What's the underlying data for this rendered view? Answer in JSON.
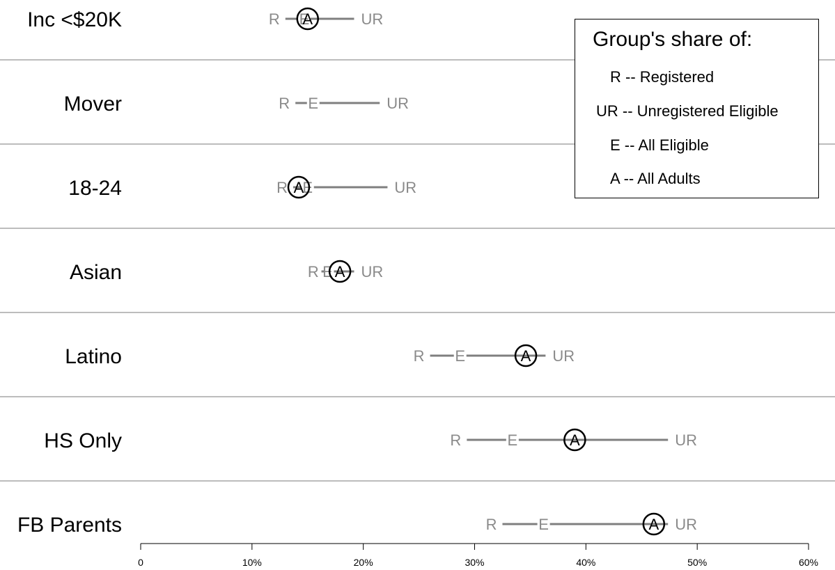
{
  "chart_data": {
    "type": "dot-range",
    "categories": [
      "Inc <$20K",
      "Mover",
      "18-24",
      "Asian",
      "Latino",
      "HS Only",
      "FB Parents"
    ],
    "series": [
      {
        "name": "R -- Registered",
        "values": [
          12.5,
          13.4,
          13.2,
          16.0,
          25.5,
          28.8,
          32.0
        ]
      },
      {
        "name": "UR -- Unregistered Eligible",
        "values": [
          19.8,
          22.1,
          22.8,
          19.8,
          37.0,
          48.0,
          48.0
        ]
      },
      {
        "name": "E -- All Eligible",
        "values": [
          14.7,
          15.5,
          15.0,
          16.8,
          28.7,
          33.4,
          36.2
        ]
      },
      {
        "name": "A -- All Adults",
        "values": [
          15.0,
          null,
          14.2,
          17.9,
          34.6,
          39.0,
          46.1
        ]
      }
    ],
    "marks": {
      "registered": "R",
      "unregistered": "UR",
      "eligible": "E",
      "adults": "A"
    },
    "xlim": [
      0,
      60
    ],
    "x_ticks": [
      "0",
      "10%",
      "20%",
      "30%",
      "40%",
      "50%",
      "60%"
    ],
    "legend": {
      "title": "Group's share of:",
      "entries": [
        "R -- Registered",
        "UR -- Unregistered Eligible",
        "E -- All Eligible",
        "A -- All Adults"
      ],
      "placement": "top-right"
    },
    "colors": {
      "range_line": "#7f7f7f",
      "range_text": "#8a8a8a",
      "adults": "#000000",
      "separator": "#7a7a7a"
    },
    "grid": false
  }
}
